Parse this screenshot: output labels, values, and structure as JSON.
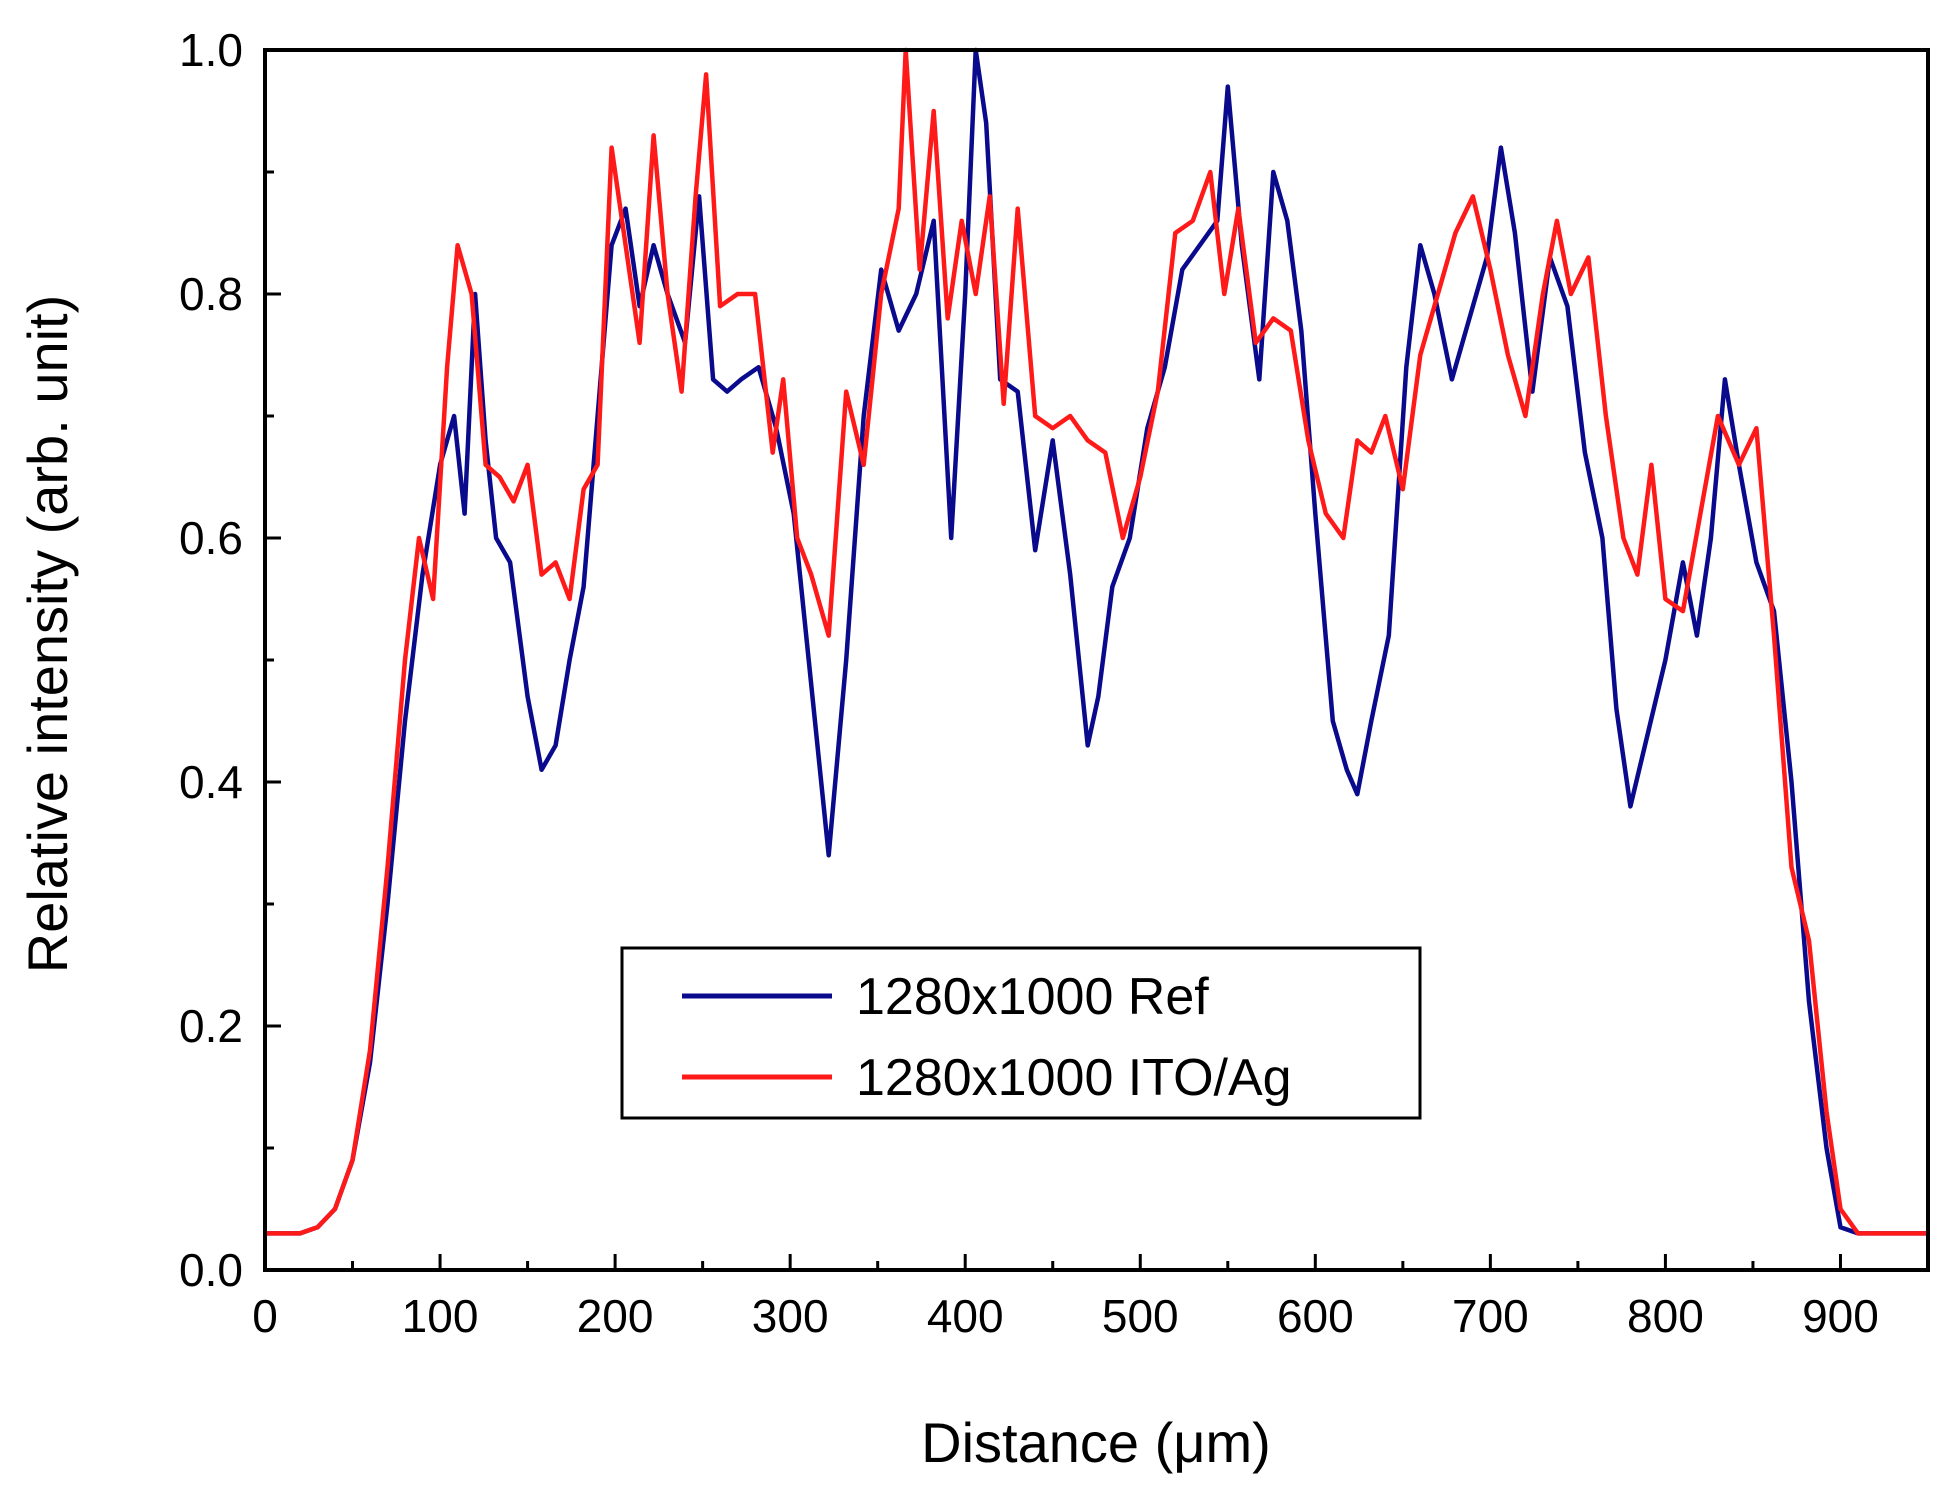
{
  "chart_data": {
    "type": "line",
    "title": "",
    "xlabel": "Distance (μm)",
    "ylabel": "Relative intensity (arb. unit)",
    "xlim": [
      0,
      950
    ],
    "ylim": [
      0.0,
      1.0
    ],
    "x_ticks": [
      "0",
      "100",
      "200",
      "300",
      "400",
      "500",
      "600",
      "700",
      "800",
      "900"
    ],
    "x_tick_values": [
      0,
      100,
      200,
      300,
      400,
      500,
      600,
      700,
      800,
      900
    ],
    "y_ticks": [
      "0.0",
      "0.2",
      "0.4",
      "0.6",
      "0.8",
      "1.0"
    ],
    "y_tick_values": [
      0.0,
      0.2,
      0.4,
      0.6,
      0.8,
      1.0
    ],
    "grid": false,
    "legend_position": "center-bottom",
    "series": [
      {
        "name": "1280x1000 Ref",
        "color": "#0a0a8c",
        "x": [
          0,
          20,
          30,
          40,
          50,
          60,
          70,
          80,
          90,
          100,
          108,
          114,
          120,
          126,
          132,
          140,
          150,
          158,
          166,
          174,
          182,
          190,
          198,
          206,
          214,
          222,
          230,
          240,
          248,
          256,
          264,
          272,
          282,
          292,
          302,
          312,
          322,
          332,
          342,
          352,
          362,
          372,
          382,
          392,
          400,
          406,
          412,
          420,
          430,
          440,
          450,
          460,
          470,
          476,
          484,
          494,
          504,
          514,
          524,
          534,
          544,
          550,
          558,
          568,
          576,
          584,
          592,
          600,
          610,
          618,
          624,
          632,
          642,
          652,
          660,
          668,
          678,
          688,
          698,
          706,
          714,
          724,
          734,
          744,
          754,
          764,
          772,
          780,
          790,
          800,
          810,
          818,
          826,
          834,
          842,
          852,
          862,
          872,
          882,
          892,
          900,
          910,
          950
        ],
        "values": [
          0.03,
          0.03,
          0.035,
          0.05,
          0.09,
          0.17,
          0.3,
          0.45,
          0.57,
          0.66,
          0.7,
          0.62,
          0.8,
          0.68,
          0.6,
          0.58,
          0.47,
          0.41,
          0.43,
          0.5,
          0.56,
          0.7,
          0.84,
          0.87,
          0.79,
          0.84,
          0.8,
          0.76,
          0.88,
          0.73,
          0.72,
          0.73,
          0.74,
          0.69,
          0.62,
          0.48,
          0.34,
          0.5,
          0.7,
          0.82,
          0.77,
          0.8,
          0.86,
          0.6,
          0.8,
          1.0,
          0.94,
          0.73,
          0.72,
          0.59,
          0.68,
          0.57,
          0.43,
          0.47,
          0.56,
          0.6,
          0.69,
          0.74,
          0.82,
          0.84,
          0.86,
          0.97,
          0.84,
          0.73,
          0.9,
          0.86,
          0.77,
          0.62,
          0.45,
          0.41,
          0.39,
          0.45,
          0.52,
          0.74,
          0.84,
          0.8,
          0.73,
          0.78,
          0.83,
          0.92,
          0.85,
          0.72,
          0.83,
          0.79,
          0.67,
          0.6,
          0.46,
          0.38,
          0.44,
          0.5,
          0.58,
          0.52,
          0.6,
          0.73,
          0.66,
          0.58,
          0.54,
          0.4,
          0.22,
          0.1,
          0.035,
          0.03,
          0.03
        ]
      },
      {
        "name": "1280x1000 ITO/Ag",
        "color": "#ff1a1a",
        "x": [
          0,
          20,
          30,
          40,
          50,
          60,
          70,
          80,
          88,
          96,
          104,
          110,
          118,
          126,
          134,
          142,
          150,
          158,
          166,
          174,
          182,
          190,
          198,
          206,
          214,
          222,
          230,
          238,
          246,
          252,
          260,
          270,
          280,
          290,
          296,
          304,
          312,
          322,
          332,
          342,
          352,
          362,
          366,
          374,
          382,
          390,
          398,
          406,
          414,
          422,
          430,
          440,
          450,
          460,
          470,
          480,
          490,
          500,
          510,
          520,
          530,
          540,
          548,
          556,
          566,
          576,
          586,
          596,
          606,
          616,
          624,
          632,
          640,
          650,
          660,
          670,
          680,
          690,
          700,
          710,
          720,
          730,
          738,
          746,
          756,
          766,
          776,
          784,
          792,
          800,
          810,
          820,
          830,
          842,
          852,
          862,
          872,
          882,
          892,
          900,
          910,
          950
        ],
        "values": [
          0.03,
          0.03,
          0.035,
          0.05,
          0.09,
          0.18,
          0.33,
          0.5,
          0.6,
          0.55,
          0.74,
          0.84,
          0.8,
          0.66,
          0.65,
          0.63,
          0.66,
          0.57,
          0.58,
          0.55,
          0.64,
          0.66,
          0.92,
          0.84,
          0.76,
          0.93,
          0.8,
          0.72,
          0.88,
          0.98,
          0.79,
          0.8,
          0.8,
          0.67,
          0.73,
          0.6,
          0.57,
          0.52,
          0.72,
          0.66,
          0.8,
          0.87,
          1.0,
          0.82,
          0.95,
          0.78,
          0.86,
          0.8,
          0.88,
          0.71,
          0.87,
          0.7,
          0.69,
          0.7,
          0.68,
          0.67,
          0.6,
          0.65,
          0.72,
          0.85,
          0.86,
          0.9,
          0.8,
          0.87,
          0.76,
          0.78,
          0.77,
          0.68,
          0.62,
          0.6,
          0.68,
          0.67,
          0.7,
          0.64,
          0.75,
          0.8,
          0.85,
          0.88,
          0.82,
          0.75,
          0.7,
          0.8,
          0.86,
          0.8,
          0.83,
          0.7,
          0.6,
          0.57,
          0.66,
          0.55,
          0.54,
          0.62,
          0.7,
          0.66,
          0.69,
          0.52,
          0.33,
          0.27,
          0.13,
          0.05,
          0.03,
          0.03
        ]
      }
    ]
  }
}
